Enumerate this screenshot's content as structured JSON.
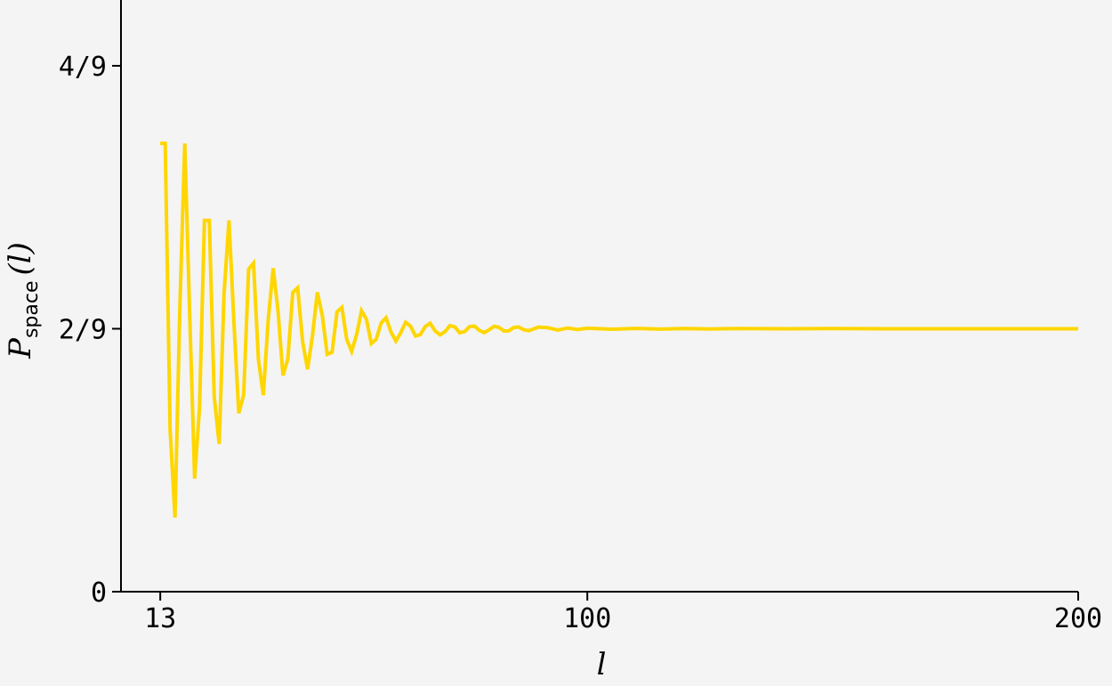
{
  "chart_data": {
    "type": "line",
    "xlabel": "l",
    "ylabel": {
      "symbol": "P",
      "subscript": "space",
      "argument": "(l)"
    },
    "xlim": [
      5,
      200
    ],
    "ylim": [
      0,
      0.5
    ],
    "x_ticks": [
      {
        "value": 13,
        "label": "13"
      },
      {
        "value": 100,
        "label": "100"
      },
      {
        "value": 200,
        "label": "200"
      }
    ],
    "y_ticks": [
      {
        "value": 0,
        "label": "0"
      },
      {
        "value": 0.2222,
        "label": "2/9"
      },
      {
        "value": 0.4444,
        "label": "4/9"
      }
    ],
    "grid": false,
    "series": [
      {
        "color": "#ffd600",
        "x": [
          13,
          14,
          15,
          16,
          17,
          18,
          19,
          20,
          21,
          22,
          23,
          24,
          25,
          26,
          27,
          28,
          29,
          30,
          31,
          32,
          33,
          34,
          35,
          36,
          37,
          38,
          39,
          40,
          41,
          42,
          43,
          44,
          45,
          46,
          47,
          48,
          49,
          50,
          51,
          52,
          53,
          54,
          55,
          56,
          57,
          58,
          59,
          60,
          61,
          62,
          63,
          64,
          65,
          66,
          67,
          68,
          69,
          70,
          71,
          72,
          73,
          74,
          75,
          76,
          77,
          78,
          79,
          80,
          81,
          82,
          83,
          84,
          85,
          86,
          87,
          88,
          89,
          90,
          92,
          94,
          96,
          98,
          100,
          105,
          110,
          115,
          120,
          125,
          130,
          140,
          150,
          160,
          170,
          180,
          190,
          200
        ],
        "y": [
          0.3789,
          0.3789,
          0.1373,
          0.0626,
          0.2406,
          0.3787,
          0.2325,
          0.0956,
          0.1556,
          0.3137,
          0.3137,
          0.165,
          0.1247,
          0.2523,
          0.3138,
          0.2286,
          0.1508,
          0.1662,
          0.2726,
          0.2776,
          0.1961,
          0.1661,
          0.2299,
          0.2733,
          0.2367,
          0.1826,
          0.1968,
          0.2528,
          0.2568,
          0.2112,
          0.188,
          0.2159,
          0.2529,
          0.2339,
          0.2007,
          0.2024,
          0.2364,
          0.2402,
          0.2131,
          0.2031,
          0.2173,
          0.2374,
          0.2303,
          0.2097,
          0.2133,
          0.2272,
          0.2315,
          0.2195,
          0.2118,
          0.2188,
          0.2277,
          0.2242,
          0.216,
          0.2173,
          0.2242,
          0.2268,
          0.2203,
          0.2171,
          0.2197,
          0.2248,
          0.2238,
          0.2188,
          0.2198,
          0.224,
          0.2244,
          0.2208,
          0.2189,
          0.2213,
          0.2242,
          0.2234,
          0.2203,
          0.2204,
          0.2232,
          0.2237,
          0.2214,
          0.2205,
          0.2219,
          0.2236,
          0.223,
          0.2211,
          0.2228,
          0.2216,
          0.2226,
          0.2218,
          0.2225,
          0.2219,
          0.2224,
          0.222,
          0.2224,
          0.2222,
          0.2223,
          0.2222,
          0.2222,
          0.2222,
          0.2222,
          0.2222
        ]
      }
    ]
  }
}
